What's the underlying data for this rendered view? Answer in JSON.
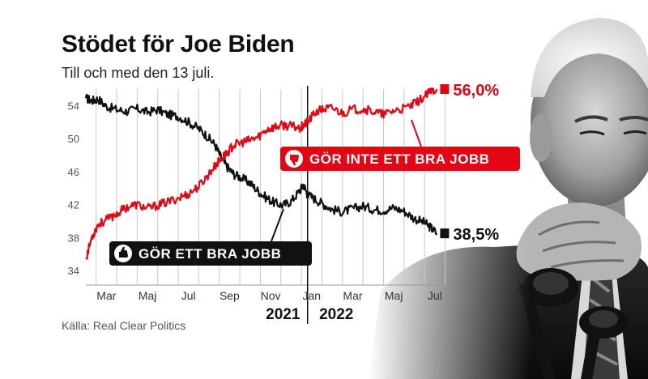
{
  "title": "Stödet för Joe Biden",
  "subtitle": "Till och med den 13 juli.",
  "source": "Källa: Real Clear Politics",
  "colors": {
    "approve": "#111111",
    "disapprove": "#e30613",
    "grid": "#c8c8c8"
  },
  "photo": {
    "description_icon": "person-photo"
  },
  "chart_data": {
    "type": "line",
    "x_unit": "months since 2021-02-01",
    "xlim": [
      0.0,
      17.4
    ],
    "ylim": [
      34,
      56
    ],
    "yticks": [
      34,
      38,
      42,
      46,
      50,
      54
    ],
    "ytick_labels": [
      "34",
      "38",
      "42",
      "46",
      "50",
      "54"
    ],
    "xticks": [
      {
        "pos": 1,
        "label": "Mar"
      },
      {
        "pos": 3,
        "label": "Maj"
      },
      {
        "pos": 5,
        "label": "Jul"
      },
      {
        "pos": 7,
        "label": "Sep"
      },
      {
        "pos": 9,
        "label": "Nov"
      },
      {
        "pos": 11,
        "label": "Jan"
      },
      {
        "pos": 13,
        "label": "Mar"
      },
      {
        "pos": 15,
        "label": "Maj"
      },
      {
        "pos": 17,
        "label": "Jul"
      }
    ],
    "year_labels": [
      {
        "pos": 9.6,
        "label": "2021"
      },
      {
        "pos": 12.2,
        "label": "2022"
      }
    ],
    "year_divider": 10.8,
    "series": [
      {
        "name": "GÖR ETT BRA JOBB",
        "color": "#111111",
        "end_label": "38,5%",
        "points": [
          [
            0,
            54.9
          ],
          [
            0.3,
            54.6
          ],
          [
            0.6,
            54.8
          ],
          [
            1,
            53.9
          ],
          [
            1.5,
            53.5
          ],
          [
            2,
            53.3
          ],
          [
            2.5,
            53.6
          ],
          [
            3,
            53.2
          ],
          [
            3.5,
            53.5
          ],
          [
            4,
            52.9
          ],
          [
            4.5,
            52.7
          ],
          [
            5,
            52.0
          ],
          [
            5.5,
            51.2
          ],
          [
            5.9,
            50.3
          ],
          [
            6.3,
            49.2
          ],
          [
            6.6,
            47.6
          ],
          [
            6.9,
            46.5
          ],
          [
            7.2,
            45.7
          ],
          [
            7.6,
            45.2
          ],
          [
            8,
            44.6
          ],
          [
            8.4,
            43.6
          ],
          [
            8.8,
            42.8
          ],
          [
            9.2,
            42.2
          ],
          [
            9.6,
            41.9
          ],
          [
            10,
            42.4
          ],
          [
            10.4,
            43.6
          ],
          [
            10.6,
            44.4
          ],
          [
            10.8,
            43.2
          ],
          [
            11.2,
            42.6
          ],
          [
            11.6,
            42.0
          ],
          [
            12,
            41.4
          ],
          [
            12.5,
            41.1
          ],
          [
            13,
            41.5
          ],
          [
            13.5,
            41.8
          ],
          [
            14,
            41.4
          ],
          [
            14.5,
            41.3
          ],
          [
            15,
            41.6
          ],
          [
            15.5,
            41.2
          ],
          [
            16,
            40.3
          ],
          [
            16.5,
            39.8
          ],
          [
            16.8,
            39.2
          ],
          [
            17.1,
            38.5
          ]
        ]
      },
      {
        "name": "GÖR INTE ETT BRA JOBB",
        "color": "#e30613",
        "end_label": "56,0%",
        "points": [
          [
            0,
            35.4
          ],
          [
            0.3,
            38.1
          ],
          [
            0.6,
            39.6
          ],
          [
            1,
            40.1
          ],
          [
            1.5,
            40.9
          ],
          [
            2,
            41.7
          ],
          [
            2.5,
            42.0
          ],
          [
            3,
            41.5
          ],
          [
            3.5,
            41.9
          ],
          [
            4,
            42.3
          ],
          [
            4.5,
            42.8
          ],
          [
            5,
            43.3
          ],
          [
            5.5,
            44.2
          ],
          [
            5.9,
            45.4
          ],
          [
            6.3,
            46.7
          ],
          [
            6.6,
            47.6
          ],
          [
            6.9,
            48.3
          ],
          [
            7.2,
            49.2
          ],
          [
            7.6,
            49.5
          ],
          [
            8,
            49.8
          ],
          [
            8.4,
            50.2
          ],
          [
            8.8,
            51.1
          ],
          [
            9.2,
            51.4
          ],
          [
            9.6,
            51.6
          ],
          [
            10,
            51.5
          ],
          [
            10.4,
            51.3
          ],
          [
            10.6,
            51.6
          ],
          [
            10.8,
            52.0
          ],
          [
            11.2,
            53.2
          ],
          [
            11.6,
            53.6
          ],
          [
            12,
            53.7
          ],
          [
            12.5,
            53.1
          ],
          [
            13,
            53.5
          ],
          [
            13.5,
            53.6
          ],
          [
            14,
            53.3
          ],
          [
            14.5,
            52.9
          ],
          [
            15,
            53.4
          ],
          [
            15.5,
            53.6
          ],
          [
            16,
            54.2
          ],
          [
            16.5,
            55.1
          ],
          [
            16.8,
            55.7
          ],
          [
            17.1,
            56.0
          ]
        ]
      }
    ],
    "callouts": [
      {
        "series": 0,
        "text": "GÖR ETT BRA JOBB",
        "icon": "thumbs-up-icon"
      },
      {
        "series": 1,
        "text": "GÖR INTE ETT BRA JOBB",
        "icon": "thumbs-down-icon"
      }
    ]
  }
}
